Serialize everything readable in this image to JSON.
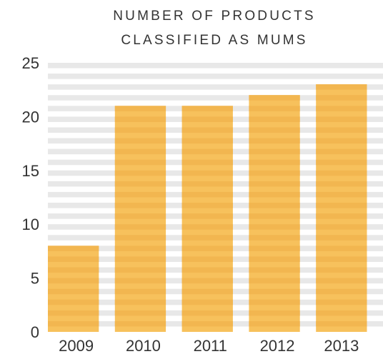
{
  "chart_data": {
    "type": "bar",
    "title_lines": [
      "NUMBER OF PRODUCTS",
      "CLASSIFIED AS MUMS"
    ],
    "xlabel": "",
    "ylabel": "",
    "categories": [
      "2009",
      "2010",
      "2011",
      "2012",
      "2013"
    ],
    "values": [
      8,
      21,
      21,
      22,
      23
    ],
    "ylim": [
      0,
      25
    ],
    "yticks": [
      "0",
      "5",
      "10",
      "15",
      "20",
      "25"
    ],
    "stripe_step": 1,
    "grid": "horizontal stripes",
    "legend": "none",
    "colors": {
      "bar": "#f7c15c",
      "bar_stripe": "#f2b650",
      "background_stripe": "#e8e8e8",
      "text": "#333333"
    }
  }
}
